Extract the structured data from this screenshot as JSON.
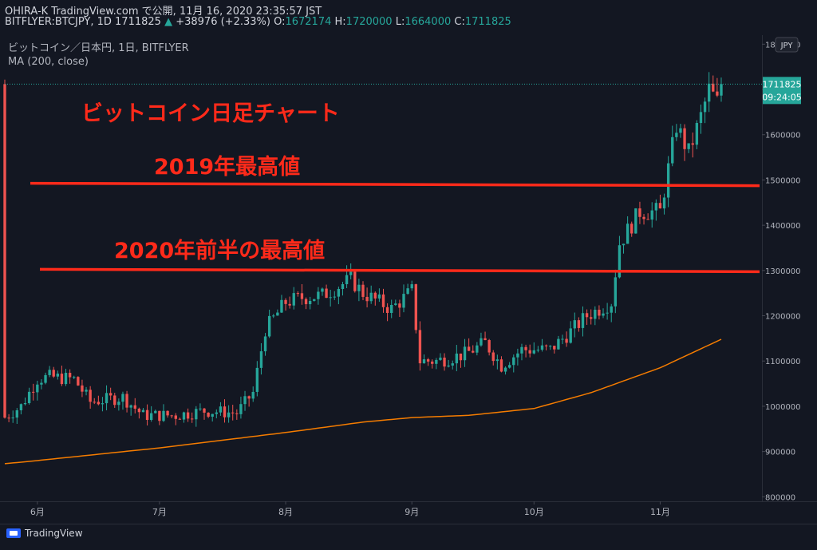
{
  "header": {
    "line1": "OHIRA-K TradingView.com で公開, 11月 16, 2020 23:35:57 JST",
    "symbol": "BITFLYER:BTCJPY, 1D 1711825",
    "change_arrow": "▲",
    "change": "+38976 (+2.33%)",
    "o_label": "O:",
    "o": "1672174",
    "h_label": "H:",
    "h": "1720000",
    "l_label": "L:",
    "l": "1664000",
    "c_label": "C:",
    "c": "1711825"
  },
  "legend": {
    "title": "ビットコイン／日本円, 1日, BITFLYER",
    "indicator": "MA (200, close)"
  },
  "annotations": {
    "main": "ビットコイン日足チャート",
    "high2019": "2019年最高値",
    "high2020": "2020年前半の最高値"
  },
  "price_scale": {
    "currency": "JPY",
    "last_price": "1711825",
    "countdown": "09:24:05"
  },
  "footer": {
    "brand": "TradingView"
  },
  "colors": {
    "background": "#131722",
    "up": "#26a69a",
    "down": "#ef5350",
    "ma": "#f57c00",
    "annotation": "#ff2a1a"
  },
  "chart_data": {
    "type": "candlestick",
    "xlabel": "",
    "ylabel": "",
    "x_tick_labels": [
      "6月",
      "7月",
      "8月",
      "9月",
      "10月",
      "11月"
    ],
    "x_tick_dates": [
      "2020-06-01",
      "2020-07-01",
      "2020-08-01",
      "2020-09-01",
      "2020-10-01",
      "2020-11-01"
    ],
    "x_range": [
      "2020-05-24",
      "2020-11-26"
    ],
    "y_tick_labels": [
      "800000",
      "900000",
      "1000000",
      "1100000",
      "1200000",
      "1300000",
      "1400000",
      "1500000",
      "1600000",
      "1700000",
      "1800000"
    ],
    "ylim": [
      790000,
      1820000
    ],
    "grid": false,
    "horizontal_lines": [
      {
        "label": "2019年最高値",
        "value": 1490000
      },
      {
        "label": "2020年前半の最高値",
        "value": 1300000
      }
    ],
    "close_waypoints": [
      [
        "2020-05-24",
        975000
      ],
      [
        "2020-05-28",
        1000000
      ],
      [
        "2020-06-01",
        1060000
      ],
      [
        "2020-06-04",
        1065000
      ],
      [
        "2020-06-10",
        1060000
      ],
      [
        "2020-06-14",
        1010000
      ],
      [
        "2020-06-22",
        1020000
      ],
      [
        "2020-06-27",
        980000
      ],
      [
        "2020-07-05",
        980000
      ],
      [
        "2020-07-12",
        990000
      ],
      [
        "2020-07-20",
        985000
      ],
      [
        "2020-07-24",
        1030000
      ],
      [
        "2020-07-27",
        1170000
      ],
      [
        "2020-08-01",
        1230000
      ],
      [
        "2020-08-05",
        1240000
      ],
      [
        "2020-08-10",
        1245000
      ],
      [
        "2020-08-17",
        1280000
      ],
      [
        "2020-08-20",
        1250000
      ],
      [
        "2020-08-27",
        1215000
      ],
      [
        "2020-09-01",
        1255000
      ],
      [
        "2020-09-03",
        1100000
      ],
      [
        "2020-09-07",
        1100000
      ],
      [
        "2020-09-14",
        1115000
      ],
      [
        "2020-09-19",
        1140000
      ],
      [
        "2020-09-23",
        1090000
      ],
      [
        "2020-09-28",
        1125000
      ],
      [
        "2020-10-05",
        1125000
      ],
      [
        "2020-10-10",
        1165000
      ],
      [
        "2020-10-14",
        1200000
      ],
      [
        "2020-10-20",
        1230000
      ],
      [
        "2020-10-22",
        1360000
      ],
      [
        "2020-10-27",
        1430000
      ],
      [
        "2020-11-01",
        1430000
      ],
      [
        "2020-11-05",
        1620000
      ],
      [
        "2020-11-08",
        1560000
      ],
      [
        "2020-11-11",
        1640000
      ],
      [
        "2020-11-13",
        1700000
      ],
      [
        "2020-11-15",
        1672000
      ],
      [
        "2020-11-16",
        1711825
      ]
    ],
    "ma200_waypoints": [
      [
        "2020-05-24",
        873000
      ],
      [
        "2020-06-01",
        880000
      ],
      [
        "2020-07-01",
        908000
      ],
      [
        "2020-08-01",
        942000
      ],
      [
        "2020-08-20",
        965000
      ],
      [
        "2020-09-01",
        975000
      ],
      [
        "2020-09-15",
        980000
      ],
      [
        "2020-10-01",
        995000
      ],
      [
        "2020-10-15",
        1030000
      ],
      [
        "2020-11-01",
        1085000
      ],
      [
        "2020-11-16",
        1148000
      ]
    ]
  }
}
